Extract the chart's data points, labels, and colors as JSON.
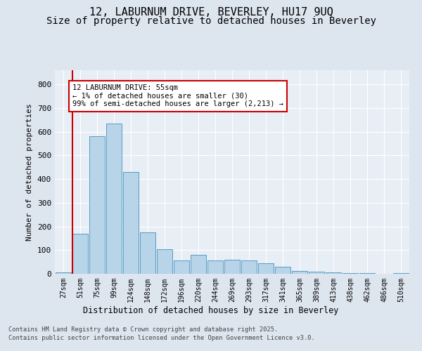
{
  "title1": "12, LABURNUM DRIVE, BEVERLEY, HU17 9UQ",
  "title2": "Size of property relative to detached houses in Beverley",
  "xlabel": "Distribution of detached houses by size in Beverley",
  "ylabel": "Number of detached properties",
  "categories": [
    "27sqm",
    "51sqm",
    "75sqm",
    "99sqm",
    "124sqm",
    "148sqm",
    "172sqm",
    "196sqm",
    "220sqm",
    "244sqm",
    "269sqm",
    "293sqm",
    "317sqm",
    "341sqm",
    "365sqm",
    "389sqm",
    "413sqm",
    "438sqm",
    "462sqm",
    "486sqm",
    "510sqm"
  ],
  "values": [
    5,
    170,
    580,
    635,
    430,
    175,
    105,
    55,
    80,
    55,
    60,
    55,
    45,
    30,
    12,
    8,
    5,
    3,
    2,
    1,
    2
  ],
  "bar_color": "#b8d4e8",
  "bar_edge_color": "#5a9bc4",
  "red_line_index": 1,
  "annotation_text": "12 LABURNUM DRIVE: 55sqm\n← 1% of detached houses are smaller (30)\n99% of semi-detached houses are larger (2,213) →",
  "annotation_box_color": "#ffffff",
  "annotation_box_edge": "#cc0000",
  "footer1": "Contains HM Land Registry data © Crown copyright and database right 2025.",
  "footer2": "Contains public sector information licensed under the Open Government Licence v3.0.",
  "ylim": [
    0,
    860
  ],
  "yticks": [
    0,
    100,
    200,
    300,
    400,
    500,
    600,
    700,
    800
  ],
  "bg_color": "#dde5ef",
  "plot_bg": "#e8eef5",
  "grid_color": "#ffffff",
  "red_line_color": "#cc0000",
  "title_fontsize": 11,
  "subtitle_fontsize": 10
}
